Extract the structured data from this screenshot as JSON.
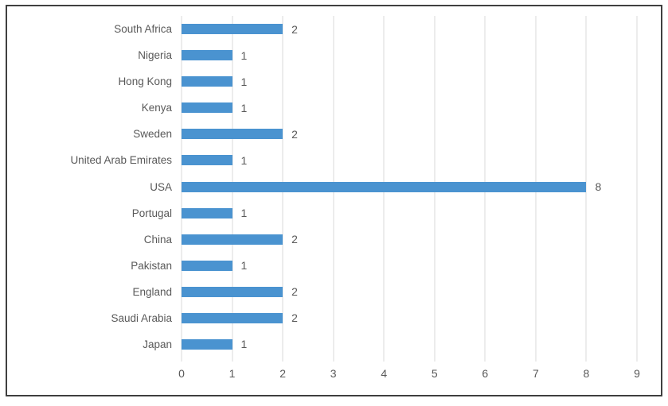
{
  "chart_data": {
    "type": "bar",
    "orientation": "horizontal",
    "title": "",
    "xlabel": "",
    "ylabel": "",
    "categories": [
      "South Africa",
      "Nigeria",
      "Hong Kong",
      "Kenya",
      "Sweden",
      "United Arab Emirates",
      "USA",
      "Portugal",
      "China",
      "Pakistan",
      "England",
      "Saudi Arabia",
      "Japan"
    ],
    "values": [
      2,
      1,
      1,
      1,
      2,
      1,
      8,
      1,
      2,
      1,
      2,
      2,
      1
    ],
    "data_labels": [
      2,
      1,
      1,
      1,
      2,
      1,
      8,
      1,
      2,
      1,
      2,
      2,
      1
    ],
    "xlim": [
      0,
      9
    ],
    "x_ticks": [
      0,
      1,
      2,
      3,
      4,
      5,
      6,
      7,
      8,
      9
    ],
    "grid": true,
    "legend": false,
    "colors": {
      "bar": "#4a93d0",
      "gridline": "#d8d8d8",
      "text": "#595959",
      "frame_border": "#3f3f3f",
      "background": "#ffffff"
    }
  }
}
